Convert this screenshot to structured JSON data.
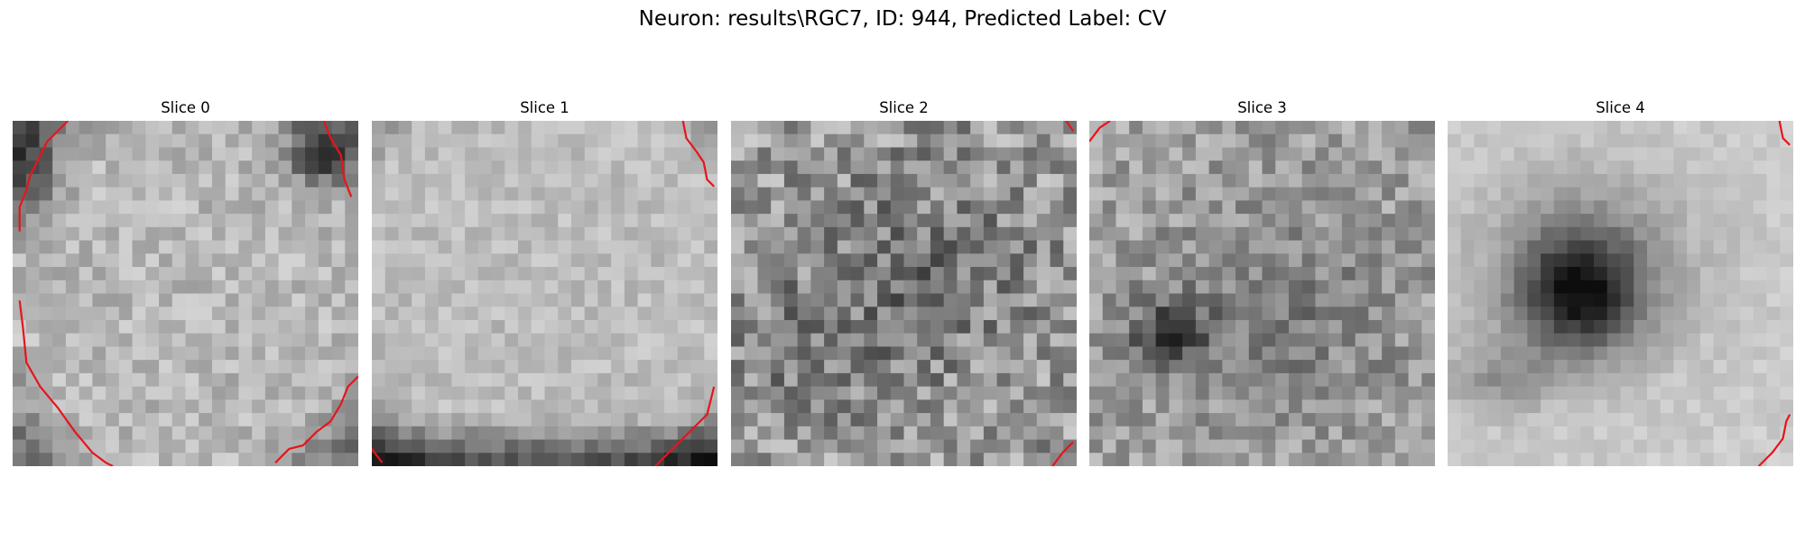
{
  "figure": {
    "title": "Neuron: results\\RGC7, ID: 944, Predicted Label: CV"
  },
  "panels": [
    {
      "title": "Slice 0",
      "texture": "bright-center-dark-corners"
    },
    {
      "title": "Slice 1",
      "texture": "bright-center-dark-bottom"
    },
    {
      "title": "Slice 2",
      "texture": "high-variance-noise"
    },
    {
      "title": "Slice 3",
      "texture": "noise-with-dark-left-blob"
    },
    {
      "title": "Slice 4",
      "texture": "central-dark-blob"
    }
  ],
  "colors": {
    "contour": "#e8141b",
    "background": "#ffffff",
    "colormap": "gray"
  }
}
